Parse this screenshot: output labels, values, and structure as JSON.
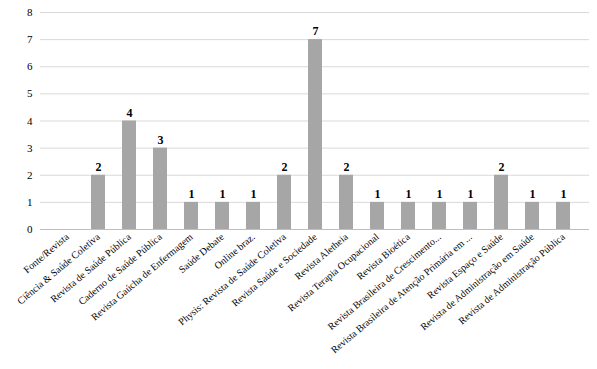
{
  "chart_data": {
    "type": "bar",
    "categories": [
      "Fonte/Revista",
      "Ciência & Saúde Coletiva",
      "Revista de Saúde Pública",
      "Caderno de Saúde Pública",
      "Revista Gaúcha de Enfermagem",
      "Saúde Debate",
      "Online braz.",
      "Physis: Revista de Saúde Coletiva",
      "Revista Saúde e Sociedade",
      "Revista Aletheia",
      "Revista Terapia Ocupacional",
      "Revista Bioética",
      "Revista Brasileira de Crescimento...",
      "Revista Brasileira de Atenção Primária em ...",
      "Revista Espaço e Saúde",
      "Revista de Administração em Saúde",
      "Revista de Administração Pública"
    ],
    "values": [
      null,
      2,
      4,
      3,
      1,
      1,
      1,
      2,
      7,
      2,
      1,
      1,
      1,
      1,
      2,
      1,
      1
    ],
    "color": "#a6a6a6",
    "ylim": [
      0,
      8
    ],
    "yticks": [
      0,
      1,
      2,
      3,
      4,
      5,
      6,
      7,
      8
    ],
    "grid": true,
    "data_labels": true
  }
}
